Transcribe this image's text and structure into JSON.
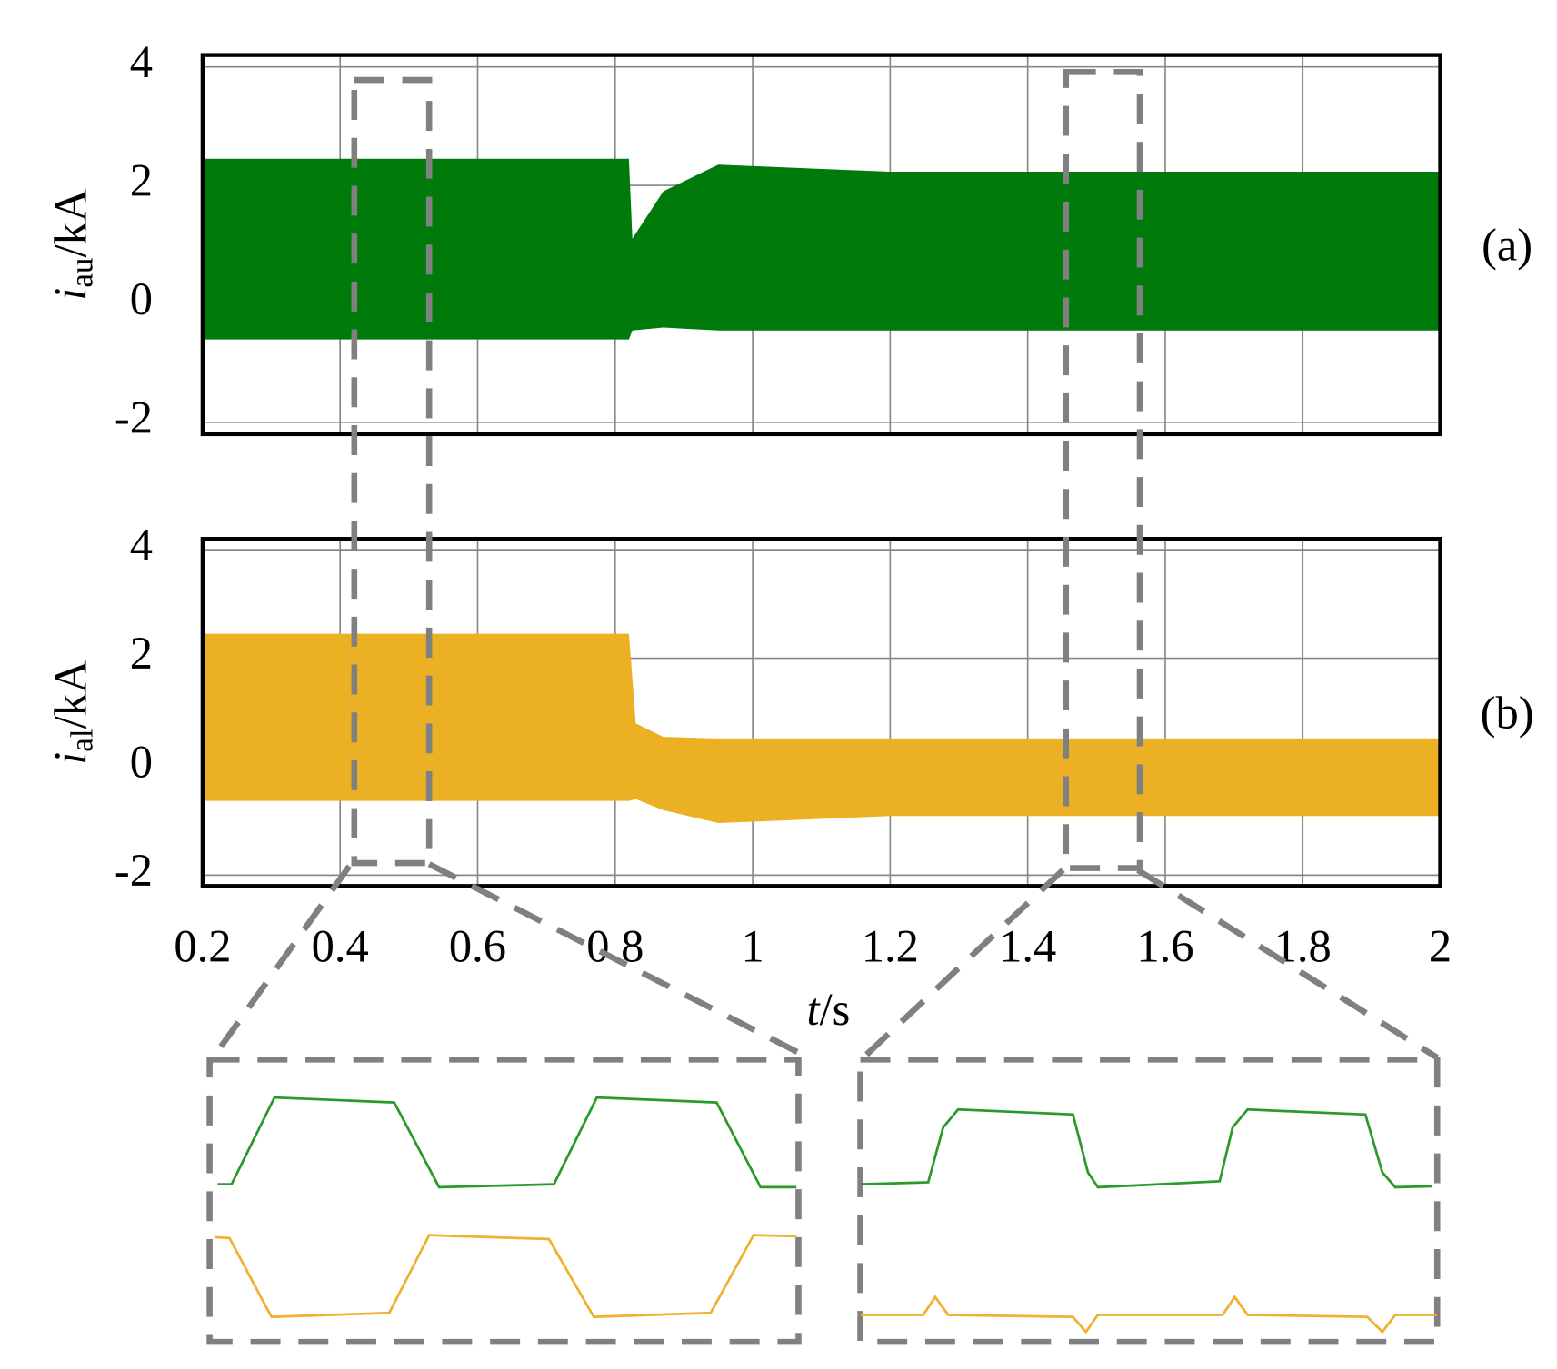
{
  "chart_data": [
    {
      "type": "band",
      "panel_label": "(a)",
      "ylabel": {
        "symbol": "i",
        "subscript": "au",
        "unit": "/kA"
      },
      "x": [
        0.2,
        0.82,
        0.825,
        0.87,
        0.95,
        1.2,
        2
      ],
      "series": [
        {
          "color": "#007a0a",
          "upper": [
            2.45,
            2.45,
            1.1,
            1.9,
            2.35,
            2.23,
            2.23
          ],
          "lower": [
            -0.6,
            -0.6,
            -0.45,
            -0.4,
            -0.45,
            -0.45,
            -0.45
          ]
        }
      ],
      "xlim": [
        0.2,
        2
      ],
      "ylim": [
        -2.2,
        4.2
      ],
      "xticks": [
        0.2,
        0.4,
        0.6,
        0.8,
        1,
        1.2,
        1.4,
        1.6,
        1.8,
        2
      ],
      "yticks": [
        -2,
        0,
        2,
        4
      ],
      "grid": true
    },
    {
      "type": "band",
      "panel_label": "(b)",
      "ylabel": {
        "symbol": "i",
        "subscript": "al",
        "unit": "/kA"
      },
      "xlabel": {
        "symbol": "t",
        "unit": "/s"
      },
      "x": [
        0.2,
        0.82,
        0.83,
        0.87,
        0.95,
        1.2,
        2
      ],
      "series": [
        {
          "color": "#ebb023",
          "upper": [
            2.45,
            2.45,
            0.8,
            0.55,
            0.52,
            0.52,
            0.52
          ],
          "lower": [
            -0.63,
            -0.63,
            -0.6,
            -0.8,
            -1.04,
            -0.91,
            -0.91
          ]
        }
      ],
      "xlim": [
        0.2,
        2
      ],
      "ylim": [
        -2.2,
        4.2
      ],
      "xticks": [
        0.2,
        0.4,
        0.6,
        0.8,
        1,
        1.2,
        1.4,
        1.6,
        1.8,
        2
      ],
      "yticks": [
        -2,
        0,
        2,
        4
      ],
      "grid": true
    }
  ]
}
